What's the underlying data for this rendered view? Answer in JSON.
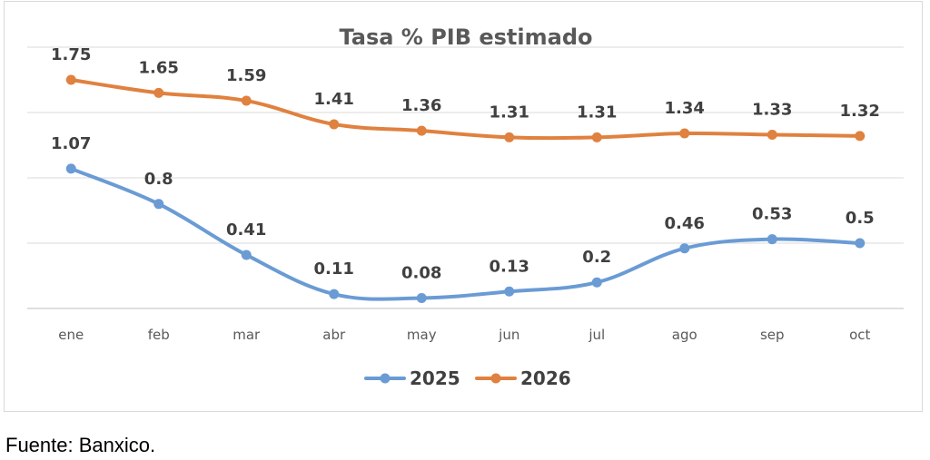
{
  "source": "Fuente: Banxico.",
  "chart_data": {
    "type": "line",
    "title": "Tasa % PIB estimado",
    "categories": [
      "ene",
      "feb",
      "mar",
      "abr",
      "may",
      "jun",
      "jul",
      "ago",
      "sep",
      "oct"
    ],
    "series": [
      {
        "name": "2025",
        "color": "#6a9bd4",
        "values": [
          1.07,
          0.8,
          0.41,
          0.11,
          0.08,
          0.13,
          0.2,
          0.46,
          0.53,
          0.5
        ],
        "labels": [
          "1.07",
          "0.8",
          "0.41",
          "0.11",
          "0.08",
          "0.13",
          "0.2",
          "0.46",
          "0.53",
          "0.5"
        ]
      },
      {
        "name": "2026",
        "color": "#e0813f",
        "values": [
          1.75,
          1.65,
          1.59,
          1.41,
          1.36,
          1.31,
          1.31,
          1.34,
          1.33,
          1.32
        ],
        "labels": [
          "1.75",
          "1.65",
          "1.59",
          "1.41",
          "1.36",
          "1.31",
          "1.31",
          "1.34",
          "1.33",
          "1.32"
        ]
      }
    ],
    "ylim": [
      0,
      2.0
    ],
    "grid": true,
    "legend": "bottom"
  }
}
